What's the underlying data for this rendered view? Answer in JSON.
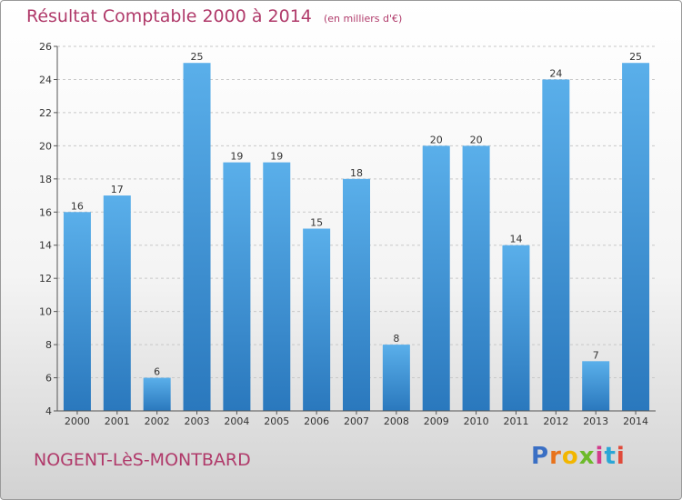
{
  "chart_data": {
    "type": "bar",
    "title": "Résultat Comptable 2000 à 2014",
    "subtitle": "(en milliers d'€)",
    "categories": [
      "2000",
      "2001",
      "2002",
      "2003",
      "2004",
      "2005",
      "2006",
      "2007",
      "2008",
      "2009",
      "2010",
      "2011",
      "2012",
      "2013",
      "2014"
    ],
    "values": [
      16,
      17,
      6,
      25,
      19,
      19,
      15,
      18,
      8,
      20,
      20,
      14,
      24,
      7,
      25
    ],
    "ylim": [
      4,
      26
    ],
    "yticks": [
      4,
      6,
      8,
      10,
      12,
      14,
      16,
      18,
      20,
      22,
      24,
      26
    ],
    "grid": true,
    "bar_color": "#3c8fd6"
  },
  "footer": {
    "commune": "NOGENT-LèS-MONTBARD",
    "logo_letters": [
      "P",
      "r",
      "o",
      "x",
      "i",
      "t",
      "i"
    ],
    "logo_colors": [
      "#3a6fc4",
      "#e8731c",
      "#f2b600",
      "#6dba2a",
      "#d23c8c",
      "#2aa6d6",
      "#e04a3a"
    ]
  }
}
